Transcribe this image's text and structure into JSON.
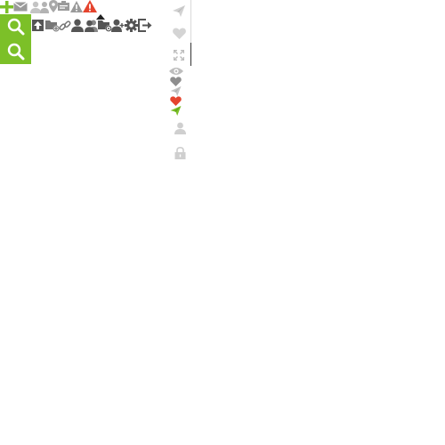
{
  "colors": {
    "accent": "#7cc028",
    "icon_grey": "#9a9a9a",
    "icon_dark": "#555555",
    "icon_light": "#bdbdbd",
    "alert": "#e5442e",
    "heart_red": "#e5442e",
    "send_green": "#7cc028"
  },
  "top_strip": {
    "icons": [
      "plus-icon",
      "envelope-icon",
      "user-icon",
      "user-icon",
      "location-pin-icon",
      "id-card-icon",
      "warning-icon",
      "alert-icon"
    ]
  },
  "toolbar": {
    "icons": [
      "upload-icon",
      "folder-add-icon",
      "link-icon",
      "user-icon",
      "users-icon",
      "folder-shared-icon",
      "user-add-icon",
      "gear-icon",
      "logout-icon"
    ]
  },
  "search_buttons": [
    "search-icon",
    "search-icon"
  ],
  "right_column": {
    "icons": [
      "send-icon",
      "heart-icon",
      "expand-icon",
      "eye-icon",
      "heart-icon",
      "send-icon",
      "heart-icon",
      "send-icon",
      "user-icon",
      "lock-icon"
    ]
  }
}
